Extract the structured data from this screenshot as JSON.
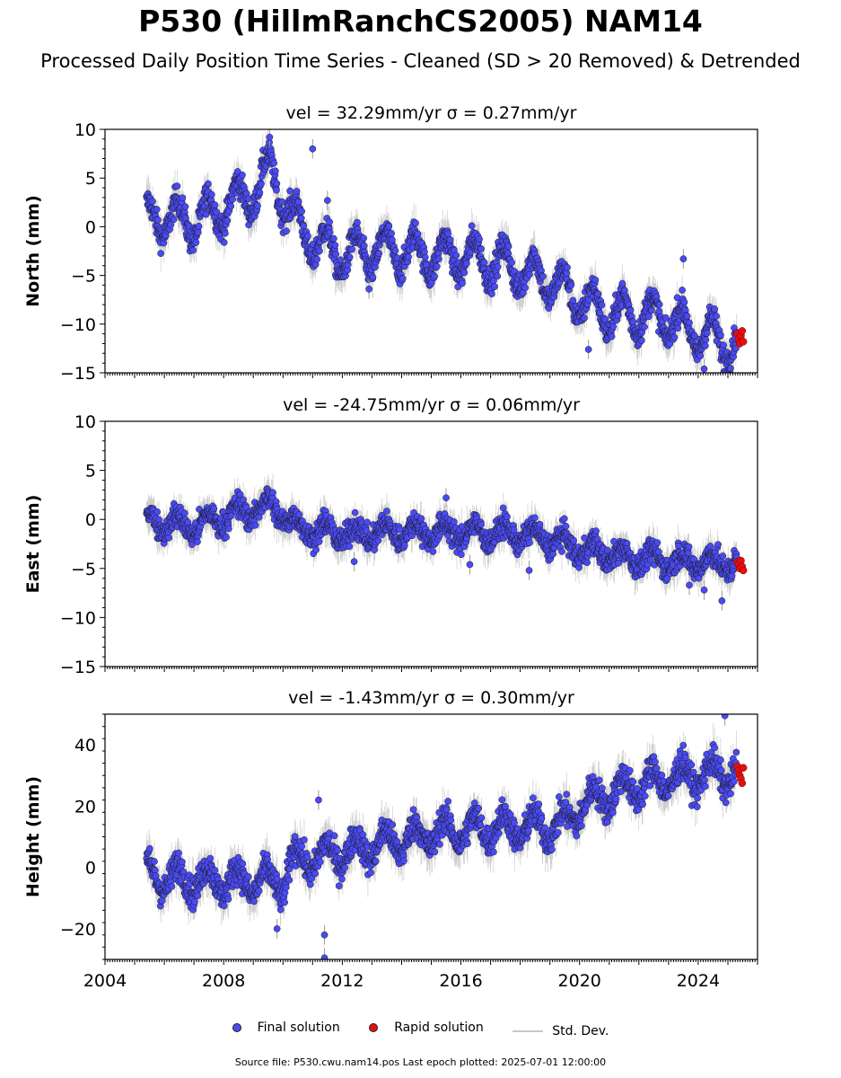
{
  "title": "P530 (HillmRanchCS2005) NAM14",
  "subtitle": "Processed Daily Position Time Series - Cleaned (SD > 20 Removed) & Detrended",
  "footer": "Source file: P530.cwu.nam14.pos  Last epoch plotted: 2025-07-01 12:00:00",
  "legend": {
    "final": "Final solution",
    "rapid": "Rapid solution",
    "std": "Std. Dev."
  },
  "colors": {
    "final": "#4a4af5",
    "rapid": "#e31010",
    "std": "#9a9a9a",
    "edge": "#1a1a1a"
  },
  "chart_data": [
    {
      "type": "scatter",
      "title": "vel = 32.29mm/yr   σ = 0.27mm/yr",
      "ylabel": "North (mm)",
      "xlabel": "",
      "xlim": [
        2004,
        2026
      ],
      "ylim": [
        -15,
        10
      ],
      "yticks": [
        -15,
        -10,
        -5,
        0,
        5,
        10
      ],
      "grid": false,
      "xtick_labels_shown": false,
      "series": [
        {
          "kind": "final",
          "trend_x": [
            2005.4,
            2006.0,
            2007.0,
            2008.0,
            2009.0,
            2009.6,
            2010.3,
            2011.0,
            2012.0,
            2013.0,
            2014.0,
            2015.0,
            2016.0,
            2017.0,
            2018.0,
            2019.0,
            2020.0,
            2021.0,
            2022.0,
            2023.0,
            2024.0,
            2025.3
          ],
          "trend_y": [
            0.5,
            1.0,
            0.5,
            2.0,
            3.5,
            5.8,
            1.0,
            -1.5,
            -3.0,
            -2.5,
            -2.5,
            -3.0,
            -3.0,
            -3.5,
            -4.5,
            -5.5,
            -7.5,
            -9.0,
            -9.0,
            -9.5,
            -11.0,
            -12.0
          ],
          "seasonal_amplitude": 2.0,
          "scatter": 1.0,
          "outliers": [
            [
              2009.55,
              9.2
            ],
            [
              2011.0,
              8.0
            ],
            [
              2011.5,
              2.7
            ],
            [
              2023.5,
              -3.3
            ],
            [
              2020.3,
              -12.6
            ],
            [
              2024.2,
              -14.6
            ],
            [
              2012.9,
              -6.4
            ]
          ]
        },
        {
          "kind": "rapid",
          "x": [
            2025.32,
            2025.36,
            2025.4,
            2025.44,
            2025.48,
            2025.52
          ],
          "y": [
            -11.0,
            -11.5,
            -12.0,
            -11.2,
            -10.7,
            -11.8
          ]
        }
      ]
    },
    {
      "type": "scatter",
      "title": "vel = -24.75mm/yr   σ = 0.06mm/yr",
      "ylabel": "East (mm)",
      "xlabel": "",
      "xlim": [
        2004,
        2026
      ],
      "ylim": [
        -15,
        10
      ],
      "yticks": [
        -15,
        -10,
        -5,
        0,
        5,
        10
      ],
      "grid": false,
      "xtick_labels_shown": false,
      "series": [
        {
          "kind": "final",
          "trend_x": [
            2005.4,
            2007.0,
            2008.0,
            2009.0,
            2009.6,
            2010.5,
            2012.0,
            2014.0,
            2016.0,
            2018.0,
            2019.0,
            2020.0,
            2021.0,
            2022.0,
            2023.0,
            2024.0,
            2025.3
          ],
          "trend_y": [
            0.0,
            -0.8,
            0.3,
            1.0,
            1.5,
            -0.8,
            -1.5,
            -1.2,
            -1.3,
            -1.5,
            -2.0,
            -3.0,
            -3.5,
            -4.0,
            -4.2,
            -4.3,
            -4.5
          ],
          "seasonal_amplitude": 0.9,
          "scatter": 0.9,
          "outliers": [
            [
              2015.5,
              2.2
            ],
            [
              2012.4,
              -4.3
            ],
            [
              2018.3,
              -5.2
            ],
            [
              2023.7,
              -6.7
            ],
            [
              2024.8,
              -8.3
            ],
            [
              2024.2,
              -7.2
            ],
            [
              2016.3,
              -4.6
            ]
          ]
        },
        {
          "kind": "rapid",
          "x": [
            2025.32,
            2025.36,
            2025.4,
            2025.44,
            2025.48,
            2025.52
          ],
          "y": [
            -4.3,
            -4.6,
            -5.0,
            -4.2,
            -4.8,
            -5.2
          ]
        }
      ]
    },
    {
      "type": "scatter",
      "title": "vel = -1.43mm/yr   σ = 0.30mm/yr",
      "ylabel": "Height (mm)",
      "xlabel": "",
      "xlim": [
        2004,
        2026
      ],
      "ylim": [
        -30,
        50
      ],
      "yticks": [
        -20,
        0,
        20,
        40
      ],
      "grid": false,
      "xtick_labels_shown": true,
      "xticks": [
        2004,
        2008,
        2012,
        2016,
        2020,
        2024
      ],
      "series": [
        {
          "kind": "final",
          "trend_x": [
            2005.4,
            2007.0,
            2008.5,
            2010.0,
            2010.3,
            2011.0,
            2012.0,
            2013.0,
            2014.0,
            2015.0,
            2016.0,
            2017.0,
            2018.0,
            2019.0,
            2019.5,
            2020.0,
            2021.0,
            2022.0,
            2023.0,
            2024.0,
            2025.3
          ],
          "trend_y": [
            -3.0,
            -4.0,
            -4.5,
            -5.0,
            2.0,
            3.0,
            5.0,
            7.0,
            9.0,
            11.0,
            12.0,
            13.0,
            13.0,
            13.5,
            14.0,
            20.0,
            24.0,
            27.0,
            29.0,
            30.0,
            31.0
          ],
          "seasonal_amplitude": 4.5,
          "scatter": 3.5,
          "outliers": [
            [
              2011.4,
              -22.0
            ],
            [
              2011.4,
              -29.5
            ],
            [
              2024.9,
              49.5
            ],
            [
              2011.2,
              22.0
            ],
            [
              2009.8,
              -20.0
            ]
          ]
        },
        {
          "kind": "rapid",
          "x": [
            2025.32,
            2025.36,
            2025.4,
            2025.44,
            2025.48,
            2025.52
          ],
          "y": [
            33.0,
            31.5,
            30.0,
            29.0,
            27.5,
            32.5
          ]
        }
      ]
    }
  ]
}
